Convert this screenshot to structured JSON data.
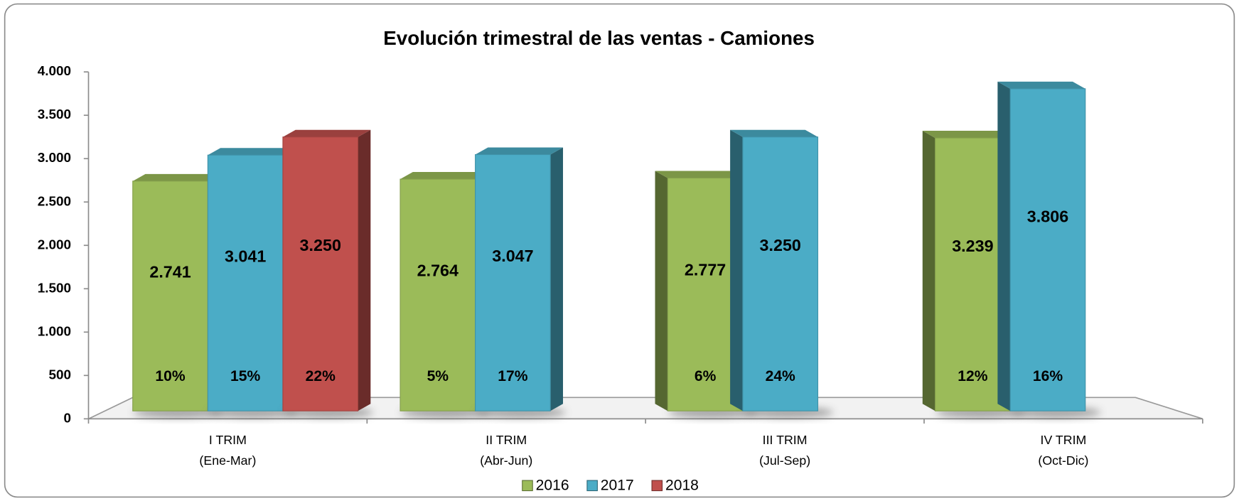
{
  "chart_data": {
    "type": "bar",
    "title": "Evolución trimestral de las ventas - Camiones",
    "categories": [
      [
        "I TRIM",
        "(Ene-Mar)"
      ],
      [
        "II TRIM",
        "(Abr-Jun)"
      ],
      [
        "III TRIM",
        "(Jul-Sep)"
      ],
      [
        "IV TRIM",
        "(Oct-Dic)"
      ]
    ],
    "series": [
      {
        "name": "2016",
        "color": "#9bbb59",
        "values": [
          2741,
          2764,
          2777,
          3239
        ],
        "value_labels": [
          "2.741",
          "2.764",
          "2.777",
          "3.239"
        ],
        "growth_labels": [
          "10%",
          "5%",
          "6%",
          "12%"
        ]
      },
      {
        "name": "2017",
        "color": "#4bacc6",
        "values": [
          3041,
          3047,
          3250,
          3806
        ],
        "value_labels": [
          "3.041",
          "3.047",
          "3.250",
          "3.806"
        ],
        "growth_labels": [
          "15%",
          "17%",
          "24%",
          "16%"
        ]
      },
      {
        "name": "2018",
        "color": "#c0504d",
        "values": [
          3250,
          null,
          null,
          null
        ],
        "value_labels": [
          "3.250",
          null,
          null,
          null
        ],
        "growth_labels": [
          "22%",
          null,
          null,
          null
        ]
      }
    ],
    "ylim": [
      0,
      4000
    ],
    "yticks": [
      0,
      500,
      {
        "value": 1000,
        "label": "1.000"
      },
      {
        "value": 1500,
        "label": "1.500"
      },
      {
        "value": 2000,
        "label": "2.000"
      },
      {
        "value": 2500,
        "label": "2.500"
      },
      {
        "value": 3000,
        "label": "3.000"
      },
      {
        "value": 3500,
        "label": "3.500"
      },
      {
        "value": 4000,
        "label": "4.000"
      }
    ],
    "legend": "bottom"
  }
}
